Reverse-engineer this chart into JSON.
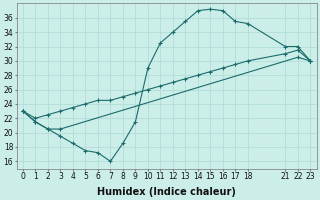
{
  "xlabel": "Humidex (Indice chaleur)",
  "bg_color": "#cceee8",
  "grid_color": "#b0ddd8",
  "line_color": "#1a6b6b",
  "ylim": [
    15,
    38
  ],
  "yticks": [
    16,
    18,
    20,
    22,
    24,
    26,
    28,
    30,
    32,
    34,
    36
  ],
  "xticks": [
    0,
    1,
    2,
    3,
    4,
    5,
    6,
    7,
    8,
    9,
    10,
    11,
    12,
    13,
    14,
    15,
    16,
    17,
    18,
    21,
    22,
    23
  ],
  "xlim": [
    -0.5,
    23.5
  ],
  "line1_x": [
    0,
    1,
    2,
    3,
    4,
    5,
    6,
    7,
    8,
    9,
    10,
    11,
    12,
    13,
    14,
    15,
    16,
    17,
    18,
    21,
    22,
    23
  ],
  "line1_y": [
    23.0,
    21.5,
    20.5,
    19.5,
    18.5,
    17.5,
    17.2,
    16.0,
    18.5,
    21.5,
    29.0,
    32.5,
    34.0,
    35.5,
    37.0,
    37.2,
    37.0,
    35.5,
    35.2,
    32.0,
    32.0,
    30.0
  ],
  "line2_x": [
    0,
    1,
    2,
    3,
    4,
    5,
    6,
    7,
    8,
    9,
    10,
    11,
    12,
    13,
    14,
    15,
    16,
    17,
    18,
    21,
    22,
    23
  ],
  "line2_y": [
    23.0,
    22.0,
    22.5,
    23.0,
    23.5,
    24.0,
    24.5,
    24.5,
    25.0,
    25.5,
    26.0,
    26.5,
    27.0,
    27.5,
    28.0,
    28.5,
    29.0,
    29.5,
    30.0,
    31.0,
    31.5,
    30.0
  ],
  "line3_x": [
    0,
    1,
    2,
    3,
    22,
    23
  ],
  "line3_y": [
    23.0,
    21.5,
    20.5,
    20.5,
    30.5,
    30.0
  ],
  "marker": "+",
  "markersize": 3.0,
  "linewidth": 0.8,
  "tick_fontsize": 5.5,
  "xlabel_fontsize": 7.0
}
